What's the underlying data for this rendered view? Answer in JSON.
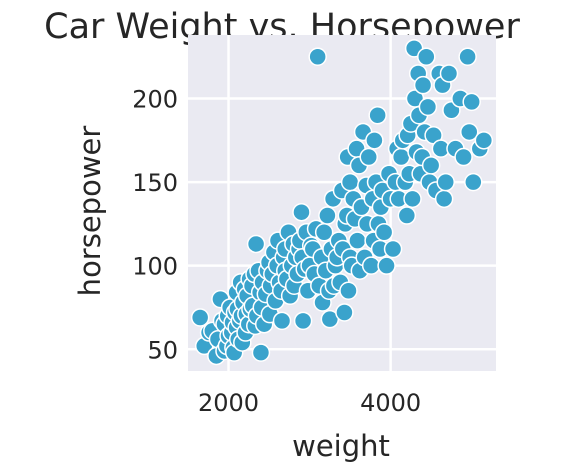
{
  "chart_data": {
    "type": "scatter",
    "title": "Car Weight vs. Horsepower",
    "xlabel": "weight",
    "ylabel": "horsepower",
    "xlim": [
      1500,
      5300
    ],
    "ylim": [
      37,
      238
    ],
    "xticks": [
      2000,
      4000
    ],
    "yticks": [
      50,
      100,
      150,
      200
    ],
    "xtick_labels": [
      "2000",
      "4000"
    ],
    "ytick_labels": [
      "50",
      "100",
      "150",
      "200"
    ],
    "grid": true,
    "colors": {
      "background": "#eaeaf2",
      "grid": "#ffffff",
      "marker": "#3aa3cc",
      "marker_edge": "#ffffff",
      "text": "#262626"
    },
    "points": [
      [
        1650,
        69
      ],
      [
        1700,
        52
      ],
      [
        1760,
        60
      ],
      [
        1800,
        61
      ],
      [
        1850,
        46
      ],
      [
        1870,
        56
      ],
      [
        1900,
        80
      ],
      [
        1920,
        67
      ],
      [
        1950,
        65
      ],
      [
        1950,
        49
      ],
      [
        1980,
        52
      ],
      [
        1990,
        70
      ],
      [
        2000,
        58
      ],
      [
        2020,
        75
      ],
      [
        2040,
        60
      ],
      [
        2050,
        66
      ],
      [
        2060,
        51
      ],
      [
        2070,
        48
      ],
      [
        2080,
        72
      ],
      [
        2100,
        84
      ],
      [
        2100,
        63
      ],
      [
        2110,
        74
      ],
      [
        2120,
        56
      ],
      [
        2140,
        67
      ],
      [
        2150,
        90
      ],
      [
        2160,
        70
      ],
      [
        2170,
        54
      ],
      [
        2180,
        78
      ],
      [
        2200,
        86
      ],
      [
        2210,
        60
      ],
      [
        2220,
        71
      ],
      [
        2230,
        82
      ],
      [
        2250,
        65
      ],
      [
        2260,
        92
      ],
      [
        2270,
        74
      ],
      [
        2290,
        88
      ],
      [
        2300,
        76
      ],
      [
        2320,
        95
      ],
      [
        2330,
        64
      ],
      [
        2340,
        113
      ],
      [
        2350,
        70
      ],
      [
        2370,
        97
      ],
      [
        2390,
        84
      ],
      [
        2400,
        48
      ],
      [
        2410,
        75
      ],
      [
        2420,
        90
      ],
      [
        2440,
        65
      ],
      [
        2460,
        83
      ],
      [
        2480,
        97
      ],
      [
        2500,
        102
      ],
      [
        2510,
        71
      ],
      [
        2520,
        88
      ],
      [
        2540,
        95
      ],
      [
        2560,
        108
      ],
      [
        2580,
        79
      ],
      [
        2600,
        100
      ],
      [
        2610,
        115
      ],
      [
        2630,
        90
      ],
      [
        2650,
        85
      ],
      [
        2660,
        67
      ],
      [
        2680,
        105
      ],
      [
        2700,
        110
      ],
      [
        2700,
        97
      ],
      [
        2720,
        92
      ],
      [
        2740,
        120
      ],
      [
        2760,
        82
      ],
      [
        2780,
        100
      ],
      [
        2800,
        113
      ],
      [
        2810,
        88
      ],
      [
        2830,
        105
      ],
      [
        2850,
        95
      ],
      [
        2870,
        110
      ],
      [
        2880,
        115
      ],
      [
        2900,
        132
      ],
      [
        2910,
        105
      ],
      [
        2920,
        67
      ],
      [
        2940,
        98
      ],
      [
        2960,
        120
      ],
      [
        2980,
        85
      ],
      [
        3000,
        100
      ],
      [
        3020,
        112
      ],
      [
        3040,
        110
      ],
      [
        3060,
        95
      ],
      [
        3080,
        122
      ],
      [
        3100,
        225
      ],
      [
        3120,
        88
      ],
      [
        3150,
        105
      ],
      [
        3160,
        78
      ],
      [
        3180,
        120
      ],
      [
        3200,
        97
      ],
      [
        3220,
        130
      ],
      [
        3240,
        85
      ],
      [
        3250,
        68
      ],
      [
        3270,
        110
      ],
      [
        3290,
        140
      ],
      [
        3300,
        88
      ],
      [
        3320,
        100
      ],
      [
        3340,
        105
      ],
      [
        3360,
        115
      ],
      [
        3380,
        90
      ],
      [
        3400,
        145
      ],
      [
        3410,
        110
      ],
      [
        3430,
        72
      ],
      [
        3440,
        125
      ],
      [
        3460,
        130
      ],
      [
        3470,
        165
      ],
      [
        3480,
        85
      ],
      [
        3500,
        105
      ],
      [
        3500,
        150
      ],
      [
        3520,
        100
      ],
      [
        3540,
        140
      ],
      [
        3560,
        128
      ],
      [
        3580,
        170
      ],
      [
        3590,
        115
      ],
      [
        3610,
        160
      ],
      [
        3620,
        97
      ],
      [
        3640,
        135
      ],
      [
        3660,
        180
      ],
      [
        3680,
        105
      ],
      [
        3700,
        148
      ],
      [
        3710,
        125
      ],
      [
        3730,
        165
      ],
      [
        3760,
        100
      ],
      [
        3780,
        140
      ],
      [
        3790,
        115
      ],
      [
        3800,
        175
      ],
      [
        3820,
        150
      ],
      [
        3840,
        190
      ],
      [
        3850,
        125
      ],
      [
        3870,
        110
      ],
      [
        3880,
        135
      ],
      [
        3900,
        145
      ],
      [
        3920,
        120
      ],
      [
        3950,
        100
      ],
      [
        3980,
        155
      ],
      [
        4000,
        140
      ],
      [
        4030,
        110
      ],
      [
        4060,
        150
      ],
      [
        4080,
        170
      ],
      [
        4100,
        140
      ],
      [
        4130,
        165
      ],
      [
        4150,
        175
      ],
      [
        4180,
        150
      ],
      [
        4200,
        130
      ],
      [
        4210,
        178
      ],
      [
        4230,
        155
      ],
      [
        4250,
        185
      ],
      [
        4270,
        140
      ],
      [
        4290,
        230
      ],
      [
        4300,
        200
      ],
      [
        4320,
        168
      ],
      [
        4340,
        215
      ],
      [
        4350,
        190
      ],
      [
        4370,
        155
      ],
      [
        4390,
        165
      ],
      [
        4400,
        208
      ],
      [
        4420,
        180
      ],
      [
        4440,
        225
      ],
      [
        4460,
        195
      ],
      [
        4480,
        150
      ],
      [
        4500,
        160
      ],
      [
        4530,
        178
      ],
      [
        4560,
        145
      ],
      [
        4600,
        215
      ],
      [
        4620,
        170
      ],
      [
        4640,
        208
      ],
      [
        4660,
        140
      ],
      [
        4680,
        150
      ],
      [
        4720,
        215
      ],
      [
        4750,
        193
      ],
      [
        4800,
        170
      ],
      [
        4860,
        200
      ],
      [
        4900,
        165
      ],
      [
        4950,
        225
      ],
      [
        4970,
        180
      ],
      [
        5000,
        198
      ],
      [
        5020,
        150
      ],
      [
        5100,
        170
      ],
      [
        5150,
        175
      ]
    ]
  }
}
